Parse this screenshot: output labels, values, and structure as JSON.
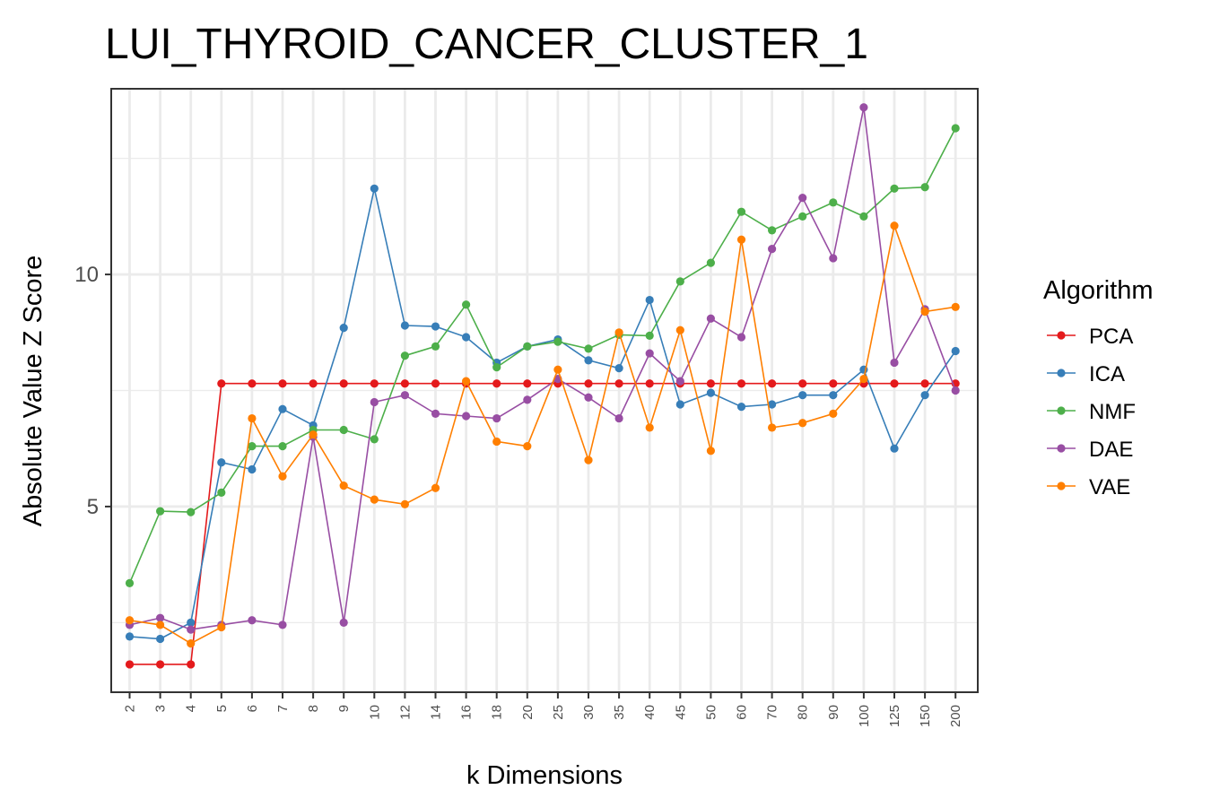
{
  "chart_data": {
    "type": "line",
    "title": "LUI_THYROID_CANCER_CLUSTER_1",
    "xlabel": "k Dimensions",
    "ylabel": "Absolute Value Z Score",
    "categories": [
      "2",
      "3",
      "4",
      "5",
      "6",
      "7",
      "8",
      "9",
      "10",
      "12",
      "14",
      "16",
      "18",
      "20",
      "25",
      "30",
      "35",
      "40",
      "45",
      "50",
      "60",
      "70",
      "80",
      "90",
      "100",
      "125",
      "150",
      "200"
    ],
    "ylim": [
      1.0,
      14.0
    ],
    "yticks": [
      5,
      10
    ],
    "grid": true,
    "legend": {
      "title": "Algorithm",
      "position": "right"
    },
    "series": [
      {
        "name": "PCA",
        "color": "#e41a1c",
        "values": [
          1.6,
          1.6,
          1.6,
          7.65,
          7.65,
          7.65,
          7.65,
          7.65,
          7.65,
          7.65,
          7.65,
          7.65,
          7.65,
          7.65,
          7.65,
          7.65,
          7.65,
          7.65,
          7.65,
          7.65,
          7.65,
          7.65,
          7.65,
          7.65,
          7.65,
          7.65,
          7.65,
          7.65
        ]
      },
      {
        "name": "ICA",
        "color": "#377eb8",
        "values": [
          2.2,
          2.15,
          2.5,
          5.95,
          5.8,
          7.1,
          6.75,
          8.85,
          11.85,
          8.9,
          8.88,
          8.65,
          8.1,
          8.45,
          8.6,
          8.15,
          7.98,
          9.45,
          7.2,
          7.45,
          7.15,
          7.2,
          7.4,
          7.4,
          7.95,
          6.25,
          7.4,
          8.35
        ]
      },
      {
        "name": "NMF",
        "color": "#4daf4a",
        "values": [
          3.35,
          4.9,
          4.88,
          5.3,
          6.3,
          6.3,
          6.65,
          6.65,
          6.45,
          8.25,
          8.45,
          9.35,
          8.0,
          8.45,
          8.55,
          8.4,
          8.7,
          8.68,
          9.85,
          10.25,
          11.35,
          10.95,
          11.25,
          11.55,
          11.25,
          11.85,
          11.88,
          13.15
        ]
      },
      {
        "name": "DAE",
        "color": "#984ea3",
        "values": [
          2.45,
          2.6,
          2.35,
          2.45,
          2.55,
          2.45,
          6.5,
          2.5,
          7.25,
          7.4,
          7.0,
          6.95,
          6.9,
          7.3,
          7.75,
          7.35,
          6.9,
          8.3,
          7.7,
          9.05,
          8.65,
          10.55,
          11.65,
          10.35,
          13.6,
          8.1,
          9.25,
          7.5
        ]
      },
      {
        "name": "VAE",
        "color": "#ff7f00",
        "values": [
          2.55,
          2.45,
          2.05,
          2.4,
          6.9,
          5.65,
          6.55,
          5.45,
          5.15,
          5.05,
          5.4,
          7.7,
          6.4,
          6.3,
          7.95,
          6.0,
          8.75,
          6.7,
          8.8,
          6.2,
          10.75,
          6.7,
          6.8,
          7.0,
          7.75,
          11.05,
          9.2,
          9.3
        ]
      }
    ]
  }
}
